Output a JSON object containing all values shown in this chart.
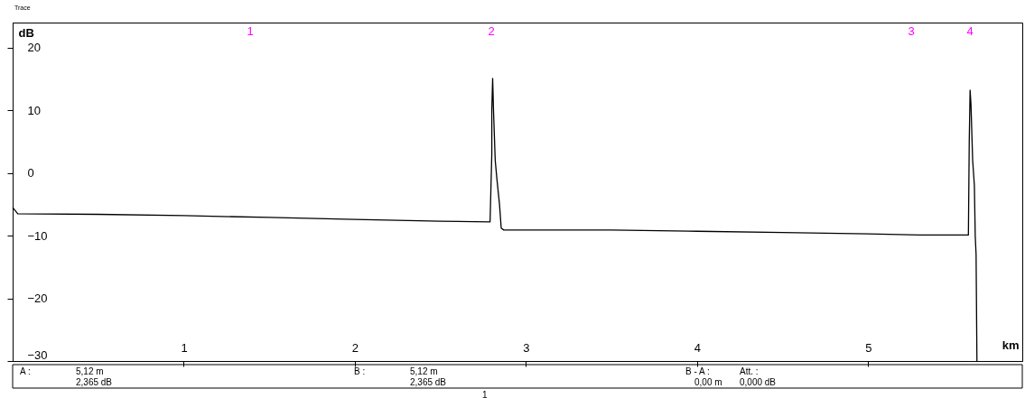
{
  "chart_data": {
    "type": "line",
    "xlabel": "km",
    "ylabel": "dB",
    "xlim": [
      0,
      5.9
    ],
    "ylim": [
      -30,
      24
    ],
    "xticks": [
      1,
      2,
      3,
      4,
      5
    ],
    "yticks": [
      -30,
      -20,
      -10,
      0,
      10,
      20
    ],
    "grid": false,
    "marker": "none",
    "line_style": "solid",
    "series": [
      {
        "color": "#000000",
        "x": [
          0.0,
          0.03,
          0.5,
          1.0,
          1.5,
          2.0,
          2.5,
          2.79,
          2.8,
          2.8,
          2.805,
          2.81,
          2.82,
          2.83,
          2.845,
          2.855,
          2.87,
          3.5,
          4.0,
          4.5,
          5.0,
          5.3,
          5.585,
          5.59,
          5.595,
          5.6,
          5.61,
          5.62,
          5.625,
          5.63,
          5.635
        ],
        "values": [
          -5.5,
          -6.5,
          -6.6,
          -6.8,
          -7.1,
          -7.4,
          -7.7,
          -7.8,
          3,
          10,
          15.1,
          10,
          2,
          -1,
          -5,
          -8.8,
          -9.1,
          -9.1,
          -9.3,
          -9.5,
          -9.7,
          -9.9,
          -9.9,
          5,
          13.2,
          11,
          2,
          -2,
          -10,
          -13,
          -30
        ]
      }
    ],
    "annotations": [
      "1",
      "2",
      "3",
      "4",
      "Trace",
      "A :",
      "5,12  m",
      "2,365  dB",
      "B :",
      "5,12  m",
      "2,365  dB",
      "B - A :",
      "0,00  m",
      "Att. :",
      "0,000  dB",
      "1"
    ]
  }
}
